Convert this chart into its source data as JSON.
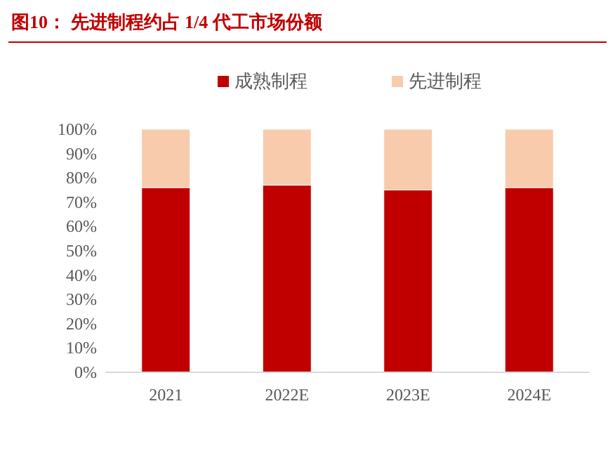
{
  "chart_data": {
    "type": "bar",
    "title": "图10：  先进制程约占 1/4 代工市场份额",
    "categories": [
      "2021",
      "2022E",
      "2023E",
      "2024E"
    ],
    "stacked": true,
    "series": [
      {
        "name": "成熟制程",
        "color": "#c00000",
        "values": [
          76,
          77,
          75,
          76
        ]
      },
      {
        "name": "先进制程",
        "color": "#f8cbad",
        "values": [
          24,
          23,
          25,
          24
        ]
      }
    ],
    "ylim": [
      0,
      100
    ],
    "yticks": [
      {
        "value": 0,
        "label": "0%"
      },
      {
        "value": 10,
        "label": "10%"
      },
      {
        "value": 20,
        "label": "20%"
      },
      {
        "value": 30,
        "label": "30%"
      },
      {
        "value": 40,
        "label": "40%"
      },
      {
        "value": 50,
        "label": "50%"
      },
      {
        "value": 60,
        "label": "60%"
      },
      {
        "value": 70,
        "label": "70%"
      },
      {
        "value": 80,
        "label": "80%"
      },
      {
        "value": 90,
        "label": "90%"
      },
      {
        "value": 100,
        "label": "100%"
      }
    ],
    "legend": "top",
    "grid": false
  }
}
